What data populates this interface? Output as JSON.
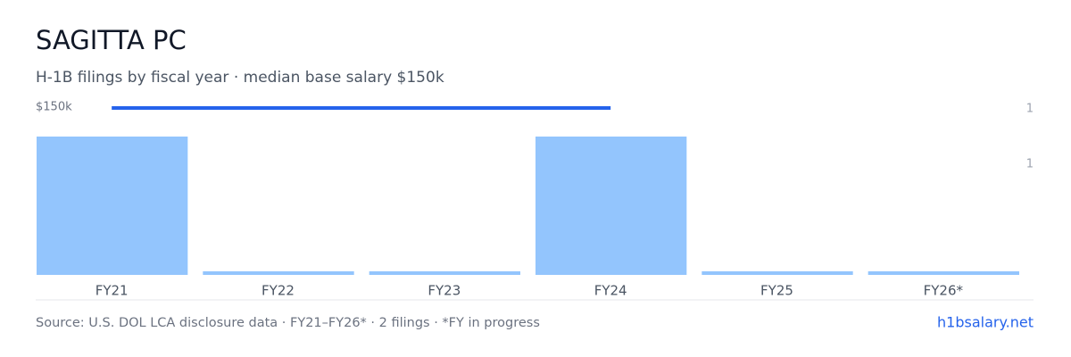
{
  "chart_data": {
    "type": "bar",
    "title": "SAGITTA PC",
    "subtitle": "H-1B filings by fiscal year · median base salary $150k",
    "categories": [
      "FY21",
      "FY22",
      "FY23",
      "FY24",
      "FY25",
      "FY26*"
    ],
    "series": [
      {
        "name": "H-1B filings",
        "color": "#93c5fd",
        "values": [
          1,
          0,
          0,
          1,
          0,
          0
        ]
      }
    ],
    "ylim": [
      0,
      1.2
    ],
    "yticks": [
      {
        "value": 1.2,
        "label": "1"
      },
      {
        "value": 0.8,
        "label": "1"
      }
    ],
    "salary": {
      "color": "#2563eb",
      "x": [
        "FY21",
        "FY24"
      ],
      "values": [
        150000,
        150000
      ],
      "value_labels": [
        "$150k"
      ],
      "ylim": [
        0,
        150000
      ]
    },
    "source": "Source: U.S. DOL LCA disclosure data · FY21–FY26* · 2 filings · *FY in progress",
    "link": "h1bsalary.net"
  }
}
